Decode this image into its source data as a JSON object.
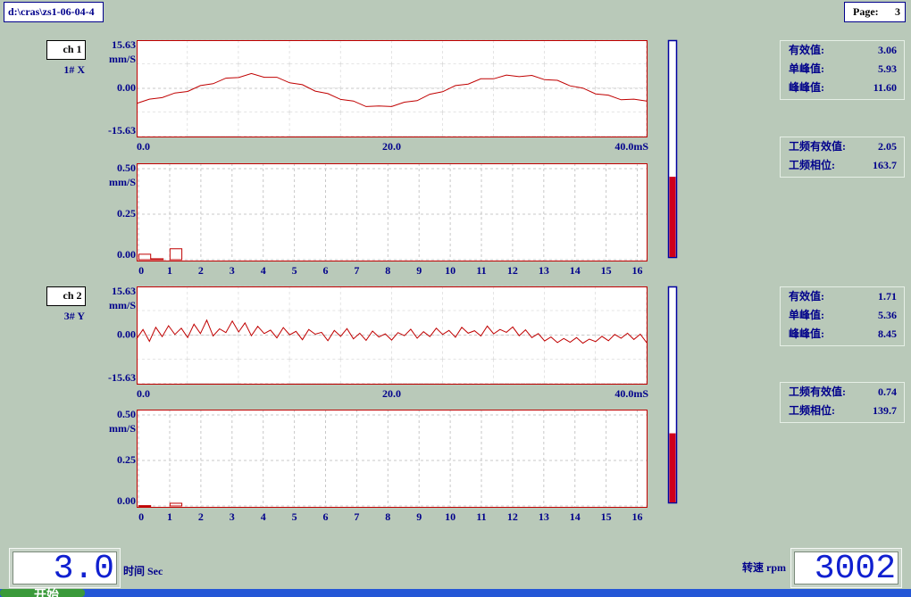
{
  "header": {
    "file": "d:\\cras\\zs1-06-04-4",
    "page_label": "Page:",
    "page_number": "3"
  },
  "chart_data": [
    {
      "type": "line",
      "y_label": "mm/S",
      "color": "#c00000",
      "grid": true,
      "x": [
        0,
        1,
        2,
        3,
        4,
        5,
        6,
        7,
        8,
        9,
        10,
        11,
        12,
        13,
        14,
        15,
        16,
        17,
        18,
        19,
        20,
        21,
        22,
        23,
        24,
        25,
        26,
        27,
        28,
        29,
        30,
        31,
        32,
        33,
        34,
        35,
        36,
        37,
        38,
        39,
        40
      ],
      "values": [
        -4.9,
        -3.5,
        -3.0,
        -1.5,
        -1.0,
        0.9,
        1.5,
        3.3,
        3.5,
        4.8,
        3.6,
        3.6,
        1.8,
        1.2,
        -0.9,
        -1.7,
        -3.6,
        -4.1,
        -5.9,
        -5.7,
        -5.9,
        -4.5,
        -4.0,
        -1.9,
        -1.1,
        0.9,
        1.4,
        3.1,
        3.1,
        4.3,
        3.8,
        4.2,
        2.8,
        2.6,
        0.8,
        0.1,
        -1.8,
        -2.2,
        -3.7,
        -3.5,
        -4.1
      ],
      "xlim": [
        0,
        40
      ],
      "ylim": [
        -15.63,
        15.63
      ],
      "xticks": [
        {
          "value": 0,
          "label": "0.0"
        },
        {
          "value": 20,
          "label": "20.0"
        },
        {
          "value": 40,
          "label": "40.0mS"
        }
      ],
      "yticks": [
        15.63,
        {
          "value": 0,
          "label": "0.00"
        },
        -15.63
      ]
    },
    {
      "type": "bar",
      "y_label": "mm/S",
      "color": "#c00000",
      "grid": true,
      "x": [
        0.2,
        0.6,
        1.2
      ],
      "values": [
        0.03,
        0.005,
        0.06
      ],
      "xlim": [
        -0.06,
        16.3
      ],
      "ylim": [
        0,
        0.5
      ],
      "xticks": [
        0,
        1,
        2,
        3,
        4,
        5,
        6,
        7,
        8,
        9,
        10,
        11,
        12,
        13,
        14,
        15,
        16
      ],
      "yticks": [
        {
          "value": 0.5,
          "label": "0.50"
        },
        0.25,
        {
          "value": 0,
          "label": "0.00"
        }
      ]
    },
    {
      "type": "line",
      "y_label": "mm/S",
      "color": "#c00000",
      "grid": true,
      "x": [
        0,
        0.5,
        1,
        1.5,
        2,
        2.5,
        3,
        3.5,
        4,
        4.5,
        5,
        5.5,
        6,
        6.5,
        7,
        7.5,
        8,
        8.5,
        9,
        9.5,
        10,
        10.5,
        11,
        11.5,
        12,
        12.5,
        13,
        13.5,
        14,
        14.5,
        15,
        15.5,
        16,
        16.5,
        17,
        17.5,
        18,
        18.5,
        19,
        19.5,
        20,
        20.5,
        21,
        21.5,
        22,
        22.5,
        23,
        23.5,
        24,
        24.5,
        25,
        25.5,
        26,
        26.5,
        27,
        27.5,
        28,
        28.5,
        29,
        29.5,
        30,
        30.5,
        31,
        31.5,
        32,
        32.5,
        33,
        33.5,
        34,
        34.5,
        35,
        35.5,
        36,
        36.5,
        37,
        37.5,
        38,
        38.5,
        39,
        39.5,
        40
      ],
      "values": [
        -1.2,
        1.8,
        -2.0,
        2.5,
        -0.5,
        3.0,
        0.2,
        2.2,
        -0.8,
        3.5,
        0.5,
        4.8,
        -0.3,
        2.0,
        0.8,
        4.5,
        1.0,
        3.9,
        -0.2,
        2.8,
        0.5,
        1.6,
        -0.9,
        2.4,
        0.1,
        1.2,
        -1.5,
        1.8,
        0.3,
        0.9,
        -1.8,
        1.5,
        -0.4,
        2.1,
        -1.2,
        0.6,
        -1.7,
        1.3,
        -0.6,
        0.4,
        -1.6,
        0.8,
        -0.2,
        1.9,
        -1.0,
        1.1,
        -0.5,
        2.2,
        0.2,
        1.5,
        -0.7,
        2.5,
        0.6,
        1.4,
        -0.3,
        2.9,
        0.4,
        1.8,
        0.9,
        2.6,
        -0.2,
        1.7,
        -0.8,
        0.5,
        -1.9,
        -0.6,
        -2.4,
        -1.1,
        -2.3,
        -0.8,
        -2.6,
        -1.3,
        -2.1,
        -0.4,
        -1.8,
        0.2,
        -1.0,
        0.6,
        -1.4,
        0.3,
        -2.4
      ],
      "xlim": [
        0,
        40
      ],
      "ylim": [
        -15.63,
        15.63
      ],
      "xticks": [
        {
          "value": 0,
          "label": "0.0"
        },
        {
          "value": 20,
          "label": "20.0"
        },
        {
          "value": 40,
          "label": "40.0mS"
        }
      ],
      "yticks": [
        15.63,
        {
          "value": 0,
          "label": "0.00"
        },
        -15.63
      ]
    },
    {
      "type": "bar",
      "y_label": "mm/S",
      "color": "#c00000",
      "grid": true,
      "x": [
        0.2,
        1.2
      ],
      "values": [
        0.002,
        0.015
      ],
      "xlim": [
        -0.06,
        16.3
      ],
      "ylim": [
        0,
        0.5
      ],
      "xticks": [
        0,
        1,
        2,
        3,
        4,
        5,
        6,
        7,
        8,
        9,
        10,
        11,
        12,
        13,
        14,
        15,
        16
      ],
      "yticks": [
        {
          "value": 0.5,
          "label": "0.50"
        },
        0.25,
        {
          "value": 0,
          "label": "0.00"
        }
      ]
    }
  ],
  "channels": [
    {
      "tag": "ch 1",
      "sensor": "1# X",
      "gauge": 0.37,
      "stats": [
        {
          "label": "有效值:",
          "value": "3.06"
        },
        {
          "label": "单峰值:",
          "value": "5.93"
        },
        {
          "label": "峰峰值:",
          "value": "11.60"
        }
      ],
      "power_stats": [
        {
          "label": "工频有效值:",
          "value": "2.05"
        },
        {
          "label": "工频相位:",
          "value": "163.7"
        }
      ]
    },
    {
      "tag": "ch 2",
      "sensor": "3# Y",
      "gauge": 0.32,
      "stats": [
        {
          "label": "有效值:",
          "value": "1.71"
        },
        {
          "label": "单峰值:",
          "value": "5.36"
        },
        {
          "label": "峰峰值:",
          "value": "8.45"
        }
      ],
      "power_stats": [
        {
          "label": "工频有效值:",
          "value": "0.74"
        },
        {
          "label": "工频相位:",
          "value": "139.7"
        }
      ]
    }
  ],
  "footer": {
    "time_value": "3.0",
    "time_label": "时间 Sec",
    "rpm_value": "3002",
    "rpm_label": "转速 rpm",
    "start": "开始"
  }
}
